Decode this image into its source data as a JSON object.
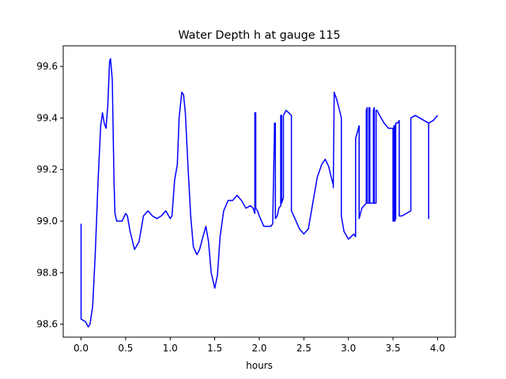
{
  "chart_data": {
    "type": "line",
    "title": "Water Depth h at gauge 115",
    "xlabel": "hours",
    "ylabel": "",
    "xlim": [
      -0.2,
      4.2
    ],
    "ylim": [
      98.55,
      99.68
    ],
    "xticks": [
      0.0,
      0.5,
      1.0,
      1.5,
      2.0,
      2.5,
      3.0,
      3.5,
      4.0
    ],
    "xtick_labels": [
      "0.0",
      "0.5",
      "1.0",
      "1.5",
      "2.0",
      "2.5",
      "3.0",
      "3.5",
      "4.0"
    ],
    "yticks": [
      98.6,
      98.8,
      99.0,
      99.2,
      99.4,
      99.6
    ],
    "ytick_labels": [
      "98.6",
      "98.8",
      "99.0",
      "99.2",
      "99.4",
      "99.6"
    ],
    "grid": false,
    "series": [
      {
        "color": "#0000ff",
        "x": [
          0.0,
          0.0,
          0.0,
          0.05,
          0.08,
          0.1,
          0.13,
          0.16,
          0.19,
          0.22,
          0.24,
          0.26,
          0.28,
          0.3,
          0.32,
          0.33,
          0.35,
          0.37,
          0.38,
          0.4,
          0.42,
          0.46,
          0.5,
          0.52,
          0.55,
          0.6,
          0.65,
          0.7,
          0.75,
          0.8,
          0.85,
          0.9,
          0.95,
          1.0,
          1.02,
          1.05,
          1.08,
          1.1,
          1.13,
          1.15,
          1.17,
          1.2,
          1.23,
          1.26,
          1.3,
          1.33,
          1.36,
          1.4,
          1.43,
          1.46,
          1.5,
          1.53,
          1.56,
          1.6,
          1.65,
          1.7,
          1.75,
          1.8,
          1.85,
          1.9,
          1.93,
          1.95,
          1.95,
          1.96,
          1.96,
          1.98,
          2.0,
          2.05,
          2.1,
          2.13,
          2.15,
          2.17,
          2.17,
          2.18,
          2.18,
          2.2,
          2.22,
          2.24,
          2.24,
          2.25,
          2.25,
          2.27,
          2.27,
          2.3,
          2.33,
          2.36,
          2.36,
          2.4,
          2.45,
          2.5,
          2.55,
          2.6,
          2.65,
          2.7,
          2.74,
          2.78,
          2.8,
          2.83,
          2.83,
          2.84,
          2.87,
          2.9,
          2.92,
          2.92,
          2.95,
          3.0,
          3.03,
          3.06,
          3.08,
          3.08,
          3.12,
          3.12,
          3.15,
          3.2,
          3.2,
          3.21,
          3.21,
          3.23,
          3.23,
          3.24,
          3.24,
          3.26,
          3.28,
          3.28,
          3.29,
          3.29,
          3.31,
          3.31,
          3.32,
          3.35,
          3.4,
          3.45,
          3.5,
          3.5,
          3.51,
          3.51,
          3.52,
          3.52,
          3.53,
          3.53,
          3.55,
          3.57,
          3.57,
          3.6,
          3.65,
          3.7,
          3.7,
          3.75,
          3.8,
          3.85,
          3.9,
          3.9,
          3.9,
          3.95,
          4.0
        ],
        "y": [
          98.99,
          98.62,
          98.62,
          98.61,
          98.59,
          98.6,
          98.67,
          98.88,
          99.15,
          99.37,
          99.42,
          99.38,
          99.36,
          99.45,
          99.62,
          99.63,
          99.55,
          99.15,
          99.03,
          99.0,
          99.0,
          99.0,
          99.03,
          99.02,
          98.96,
          98.89,
          98.92,
          99.02,
          99.04,
          99.02,
          99.01,
          99.02,
          99.04,
          99.01,
          99.02,
          99.16,
          99.22,
          99.4,
          99.5,
          99.49,
          99.42,
          99.21,
          99.02,
          98.9,
          98.87,
          98.89,
          98.93,
          98.98,
          98.92,
          98.8,
          98.74,
          98.79,
          98.94,
          99.04,
          99.08,
          99.08,
          99.1,
          99.08,
          99.05,
          99.06,
          99.05,
          99.03,
          99.42,
          99.42,
          99.05,
          99.04,
          99.02,
          98.98,
          98.98,
          98.98,
          98.99,
          99.35,
          99.38,
          99.38,
          99.01,
          99.02,
          99.05,
          99.06,
          99.41,
          99.41,
          99.07,
          99.09,
          99.41,
          99.43,
          99.42,
          99.41,
          99.04,
          99.01,
          98.97,
          98.95,
          98.97,
          99.07,
          99.17,
          99.22,
          99.24,
          99.21,
          99.18,
          99.14,
          99.13,
          99.5,
          99.47,
          99.43,
          99.4,
          99.02,
          98.96,
          98.93,
          98.94,
          98.95,
          98.94,
          99.32,
          99.37,
          99.01,
          99.05,
          99.07,
          99.43,
          99.44,
          99.07,
          99.07,
          99.44,
          99.44,
          99.07,
          99.07,
          99.07,
          99.43,
          99.44,
          99.07,
          99.07,
          99.43,
          99.43,
          99.41,
          99.38,
          99.36,
          99.36,
          99.0,
          99.0,
          99.37,
          99.37,
          99.0,
          99.01,
          99.38,
          99.38,
          99.39,
          99.02,
          99.02,
          99.03,
          99.04,
          99.4,
          99.41,
          99.4,
          99.39,
          99.38,
          99.01,
          99.38,
          99.39,
          99.41
        ]
      }
    ]
  }
}
